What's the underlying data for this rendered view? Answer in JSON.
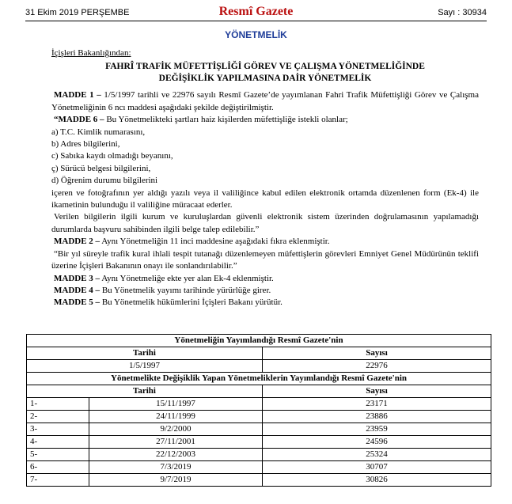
{
  "header": {
    "date": "31 Ekim 2019 PERŞEMBE",
    "title": "Resmî Gazete",
    "issue": "Sayı : 30934"
  },
  "section": "YÖNETMELİK",
  "ministry": "İçişleri Bakanlığından:",
  "doc_title": [
    "FAHRÎ TRAFİK MÜFETTİŞLİĞİ GÖREV VE ÇALIŞMA YÖNETMELİĞİNDE",
    "DEĞİŞİKLİK YAPILMASINA DAİR YÖNETMELİK"
  ],
  "paragraphs": [
    {
      "lead": "MADDE 1 –",
      "text": " 1/5/1997 tarihli ve 22976 sayılı Resmî Gazete’de yayımlanan Fahri Trafik Müfettişliği Görev ve Çalışma Yönetmeliğinin 6 ncı maddesi aşağıdaki şekilde değiştirilmiştir."
    },
    {
      "lead": "“MADDE 6 –",
      "text": " Bu Yönetmelikteki şartları haiz kişilerden müfettişliğe istekli olanlar;"
    },
    {
      "text": "a) T.C. Kimlik numarasını,"
    },
    {
      "text": "b) Adres bilgilerini,"
    },
    {
      "text": "c) Sabıka kaydı olmadığı beyanını,"
    },
    {
      "text": "ç) Sürücü belgesi bilgilerini,"
    },
    {
      "text": "d) Öğrenim durumu bilgilerini"
    },
    {
      "text": "içeren ve fotoğrafının yer aldığı yazılı veya il valiliğince kabul edilen elektronik ortamda düzenlenen form (Ek-4) ile ikametinin bulunduğu il valiliğine müracaat ederler."
    },
    {
      "text": "Verilen bilgilerin ilgili kurum ve kuruluşlardan güvenli elektronik sistem üzerinden doğrulamasının yapılamadığı durumlarda başvuru sahibinden ilgili belge talep edilebilir.”"
    },
    {
      "lead": "MADDE 2 –",
      "text": " Aynı Yönetmeliğin 11 inci maddesine aşağıdaki fıkra eklenmiştir."
    },
    {
      "text": "“Bir yıl süreyle trafik kural ihlali tespit tutanağı düzenlemeyen müfettişlerin görevleri Emniyet Genel Müdürünün teklifi üzerine İçişleri Bakanının onayı ile sonlandırılabilir.”"
    },
    {
      "lead": "MADDE 3 –",
      "text": " Aynı Yönetmeliğe ekte yer alan Ek-4 eklenmiştir."
    },
    {
      "lead": "MADDE 4 –",
      "text": " Bu Yönetmelik yayımı tarihinde yürürlüğe girer."
    },
    {
      "lead": "MADDE 5 –",
      "text": " Bu Yönetmelik hükümlerini İçişleri Bakanı yürütür."
    }
  ],
  "table": {
    "section1": {
      "heading": "Yönetmeliğin Yayımlandığı Resmî Gazete'nin",
      "columns": [
        "Tarihi",
        "Sayısı"
      ],
      "row": [
        "1/5/1997",
        "22976"
      ]
    },
    "section2": {
      "heading": "Yönetmelikte Değişiklik Yapan Yönetmeliklerin Yayımlandığı Resmî Gazete'nin",
      "columns": [
        "Tarihi",
        "Sayısı"
      ],
      "rows": [
        [
          "1-",
          "15/11/1997",
          "23171"
        ],
        [
          "2-",
          "24/11/1999",
          "23886"
        ],
        [
          "3-",
          "9/2/2000",
          "23959"
        ],
        [
          "4-",
          "27/11/2001",
          "24596"
        ],
        [
          "5-",
          "22/12/2003",
          "25324"
        ],
        [
          "6-",
          "7/3/2019",
          "30707"
        ],
        [
          "7-",
          "9/7/2019",
          "30826"
        ]
      ]
    }
  }
}
